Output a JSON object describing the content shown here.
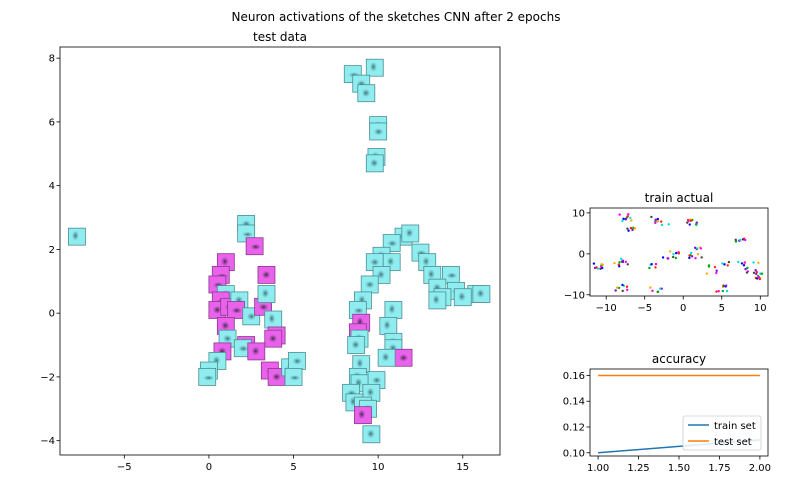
{
  "figure": {
    "suptitle": "Neuron activations of the sketches CNN after 2 epochs"
  },
  "colors": {
    "cyan": "#79e6ea",
    "magenta": "#e65be8",
    "train_line": "#1f77b4",
    "test_line": "#ff7f0e"
  },
  "chart_data": [
    {
      "id": "test-data",
      "type": "scatter",
      "title": "test data",
      "xlabel": "",
      "ylabel": "",
      "xlim": [
        -8.8,
        17.2
      ],
      "ylim": [
        -4.45,
        8.35
      ],
      "xticks": [
        -5,
        0,
        5,
        10,
        15
      ],
      "yticks": [
        -4,
        -2,
        0,
        2,
        4,
        6,
        8
      ],
      "marker": "image-thumbnail",
      "points": [
        {
          "x": -7.8,
          "y": 2.4,
          "c": "cyan"
        },
        {
          "x": 8.5,
          "y": 7.5,
          "c": "cyan"
        },
        {
          "x": 9.8,
          "y": 7.7,
          "c": "cyan"
        },
        {
          "x": 9.0,
          "y": 7.2,
          "c": "cyan"
        },
        {
          "x": 9.3,
          "y": 6.9,
          "c": "cyan"
        },
        {
          "x": 10.0,
          "y": 5.9,
          "c": "cyan"
        },
        {
          "x": 10.0,
          "y": 5.7,
          "c": "cyan"
        },
        {
          "x": 9.9,
          "y": 4.9,
          "c": "cyan"
        },
        {
          "x": 9.8,
          "y": 4.7,
          "c": "cyan"
        },
        {
          "x": 2.2,
          "y": 2.8,
          "c": "cyan"
        },
        {
          "x": 2.2,
          "y": 2.5,
          "c": "cyan"
        },
        {
          "x": 2.7,
          "y": 2.1,
          "c": "magenta"
        },
        {
          "x": 1.0,
          "y": 1.6,
          "c": "magenta"
        },
        {
          "x": 0.7,
          "y": 1.2,
          "c": "magenta"
        },
        {
          "x": 0.5,
          "y": 0.9,
          "c": "magenta"
        },
        {
          "x": 1.0,
          "y": 0.6,
          "c": "cyan"
        },
        {
          "x": 0.7,
          "y": 0.4,
          "c": "magenta"
        },
        {
          "x": 0.5,
          "y": 0.1,
          "c": "magenta"
        },
        {
          "x": 1.2,
          "y": 0.2,
          "c": "magenta"
        },
        {
          "x": 1.8,
          "y": 0.4,
          "c": "cyan"
        },
        {
          "x": 1.6,
          "y": 0.1,
          "c": "magenta"
        },
        {
          "x": 2.5,
          "y": -0.1,
          "c": "cyan"
        },
        {
          "x": 3.2,
          "y": 0.2,
          "c": "magenta"
        },
        {
          "x": 3.4,
          "y": 1.2,
          "c": "magenta"
        },
        {
          "x": 3.4,
          "y": 0.6,
          "c": "cyan"
        },
        {
          "x": 1.0,
          "y": -0.4,
          "c": "magenta"
        },
        {
          "x": 1.1,
          "y": -0.8,
          "c": "cyan"
        },
        {
          "x": 3.8,
          "y": -0.2,
          "c": "cyan"
        },
        {
          "x": 4.0,
          "y": -0.7,
          "c": "magenta"
        },
        {
          "x": 3.8,
          "y": -0.8,
          "c": "magenta"
        },
        {
          "x": 2.2,
          "y": -1.0,
          "c": "magenta"
        },
        {
          "x": 2.0,
          "y": -1.1,
          "c": "cyan"
        },
        {
          "x": 2.8,
          "y": -1.2,
          "c": "magenta"
        },
        {
          "x": 0.8,
          "y": -1.2,
          "c": "magenta"
        },
        {
          "x": 0.5,
          "y": -1.5,
          "c": "cyan"
        },
        {
          "x": 0.0,
          "y": -1.8,
          "c": "cyan"
        },
        {
          "x": -0.1,
          "y": -2.0,
          "c": "cyan"
        },
        {
          "x": 3.6,
          "y": -1.8,
          "c": "magenta"
        },
        {
          "x": 4.0,
          "y": -2.0,
          "c": "magenta"
        },
        {
          "x": 4.8,
          "y": -1.7,
          "c": "cyan"
        },
        {
          "x": 5.2,
          "y": -1.5,
          "c": "cyan"
        },
        {
          "x": 5.0,
          "y": -2.0,
          "c": "cyan"
        },
        {
          "x": 11.5,
          "y": 2.4,
          "c": "cyan"
        },
        {
          "x": 11.9,
          "y": 2.5,
          "c": "cyan"
        },
        {
          "x": 10.8,
          "y": 2.2,
          "c": "cyan"
        },
        {
          "x": 12.5,
          "y": 1.9,
          "c": "cyan"
        },
        {
          "x": 10.2,
          "y": 1.8,
          "c": "cyan"
        },
        {
          "x": 9.8,
          "y": 1.6,
          "c": "cyan"
        },
        {
          "x": 10.8,
          "y": 1.6,
          "c": "cyan"
        },
        {
          "x": 12.9,
          "y": 1.6,
          "c": "cyan"
        },
        {
          "x": 10.2,
          "y": 1.2,
          "c": "cyan"
        },
        {
          "x": 13.2,
          "y": 1.2,
          "c": "cyan"
        },
        {
          "x": 14.3,
          "y": 1.2,
          "c": "cyan"
        },
        {
          "x": 9.5,
          "y": 0.9,
          "c": "cyan"
        },
        {
          "x": 13.5,
          "y": 0.8,
          "c": "cyan"
        },
        {
          "x": 14.6,
          "y": 0.7,
          "c": "cyan"
        },
        {
          "x": 15.8,
          "y": 0.6,
          "c": "cyan"
        },
        {
          "x": 16.1,
          "y": 0.6,
          "c": "cyan"
        },
        {
          "x": 13.8,
          "y": 0.5,
          "c": "cyan"
        },
        {
          "x": 15.0,
          "y": 0.5,
          "c": "cyan"
        },
        {
          "x": 9.1,
          "y": 0.4,
          "c": "cyan"
        },
        {
          "x": 13.5,
          "y": 0.4,
          "c": "cyan"
        },
        {
          "x": 8.8,
          "y": 0.1,
          "c": "cyan"
        },
        {
          "x": 10.9,
          "y": 0.1,
          "c": "cyan"
        },
        {
          "x": 9.0,
          "y": -0.3,
          "c": "magenta"
        },
        {
          "x": 10.6,
          "y": -0.4,
          "c": "cyan"
        },
        {
          "x": 8.8,
          "y": -0.6,
          "c": "magenta"
        },
        {
          "x": 8.9,
          "y": -0.8,
          "c": "cyan"
        },
        {
          "x": 10.9,
          "y": -0.9,
          "c": "cyan"
        },
        {
          "x": 8.7,
          "y": -1.0,
          "c": "cyan"
        },
        {
          "x": 10.9,
          "y": -1.1,
          "c": "cyan"
        },
        {
          "x": 11.5,
          "y": -1.4,
          "c": "magenta"
        },
        {
          "x": 10.5,
          "y": -1.4,
          "c": "cyan"
        },
        {
          "x": 9.0,
          "y": -1.6,
          "c": "cyan"
        },
        {
          "x": 8.8,
          "y": -2.0,
          "c": "cyan"
        },
        {
          "x": 9.9,
          "y": -2.1,
          "c": "cyan"
        },
        {
          "x": 8.9,
          "y": -2.2,
          "c": "cyan"
        },
        {
          "x": 8.4,
          "y": -2.5,
          "c": "cyan"
        },
        {
          "x": 9.6,
          "y": -2.5,
          "c": "cyan"
        },
        {
          "x": 8.6,
          "y": -2.8,
          "c": "cyan"
        },
        {
          "x": 9.1,
          "y": -2.9,
          "c": "cyan"
        },
        {
          "x": 9.4,
          "y": -3.0,
          "c": "cyan"
        },
        {
          "x": 9.1,
          "y": -3.2,
          "c": "magenta"
        },
        {
          "x": 9.6,
          "y": -3.8,
          "c": "cyan"
        }
      ]
    },
    {
      "id": "train-actual",
      "type": "scatter",
      "title": "train actual",
      "xlabel": "",
      "ylabel": "",
      "xlim": [
        -12.1,
        11.0
      ],
      "ylim": [
        -10.3,
        11.2
      ],
      "xticks": [
        -10,
        -5,
        0,
        5,
        10
      ],
      "yticks": [
        -10,
        0,
        10
      ],
      "point_colors": [
        "#8800ff",
        "#ff00ff",
        "#00dddd",
        "#00aa00",
        "#ff2200",
        "#0000ff",
        "#ffaa00",
        "#444444"
      ],
      "clusters": [
        {
          "x": -7.5,
          "y": 8.8,
          "spread": 0.9,
          "n": 10
        },
        {
          "x": -6.8,
          "y": 6.0,
          "spread": 0.6,
          "n": 6
        },
        {
          "x": -3.0,
          "y": 7.9,
          "spread": 1.2,
          "n": 10
        },
        {
          "x": 1.2,
          "y": 7.8,
          "spread": 0.8,
          "n": 10
        },
        {
          "x": -11.0,
          "y": -3.0,
          "spread": 0.8,
          "n": 10
        },
        {
          "x": -8.0,
          "y": -2.2,
          "spread": 1.0,
          "n": 10
        },
        {
          "x": -8.0,
          "y": -8.3,
          "spread": 0.8,
          "n": 8
        },
        {
          "x": -4.0,
          "y": -3.0,
          "spread": 0.5,
          "n": 5
        },
        {
          "x": -3.5,
          "y": -8.8,
          "spread": 0.8,
          "n": 6
        },
        {
          "x": -1.5,
          "y": 0.0,
          "spread": 1.2,
          "n": 10
        },
        {
          "x": 1.5,
          "y": -0.5,
          "spread": 0.9,
          "n": 8
        },
        {
          "x": 2.0,
          "y": 1.5,
          "spread": 0.5,
          "n": 5
        },
        {
          "x": 4.5,
          "y": -3.5,
          "spread": 1.5,
          "n": 10
        },
        {
          "x": 5.0,
          "y": -8.5,
          "spread": 0.8,
          "n": 8
        },
        {
          "x": 7.5,
          "y": 3.0,
          "spread": 0.7,
          "n": 8
        },
        {
          "x": 8.5,
          "y": -3.3,
          "spread": 1.5,
          "n": 14
        },
        {
          "x": 9.8,
          "y": -5.5,
          "spread": 0.8,
          "n": 10
        }
      ]
    },
    {
      "id": "accuracy",
      "type": "line",
      "title": "accuracy",
      "xlabel": "",
      "ylabel": "",
      "xlim": [
        0.95,
        2.05
      ],
      "ylim": [
        0.0975,
        0.165
      ],
      "xticks": [
        1.0,
        1.25,
        1.5,
        1.75,
        2.0
      ],
      "xtick_labels": [
        "1.00",
        "1.25",
        "1.50",
        "1.75",
        "2.00"
      ],
      "yticks": [
        0.1,
        0.12,
        0.14,
        0.16
      ],
      "ytick_labels": [
        "0.10",
        "0.12",
        "0.14",
        "0.16"
      ],
      "legend": "lower right",
      "series": [
        {
          "name": "train set",
          "x": [
            1,
            2
          ],
          "values": [
            0.1,
            0.11
          ],
          "color": "train_line"
        },
        {
          "name": "test set",
          "x": [
            1,
            2
          ],
          "values": [
            0.16,
            0.16
          ],
          "color": "test_line"
        }
      ]
    }
  ]
}
